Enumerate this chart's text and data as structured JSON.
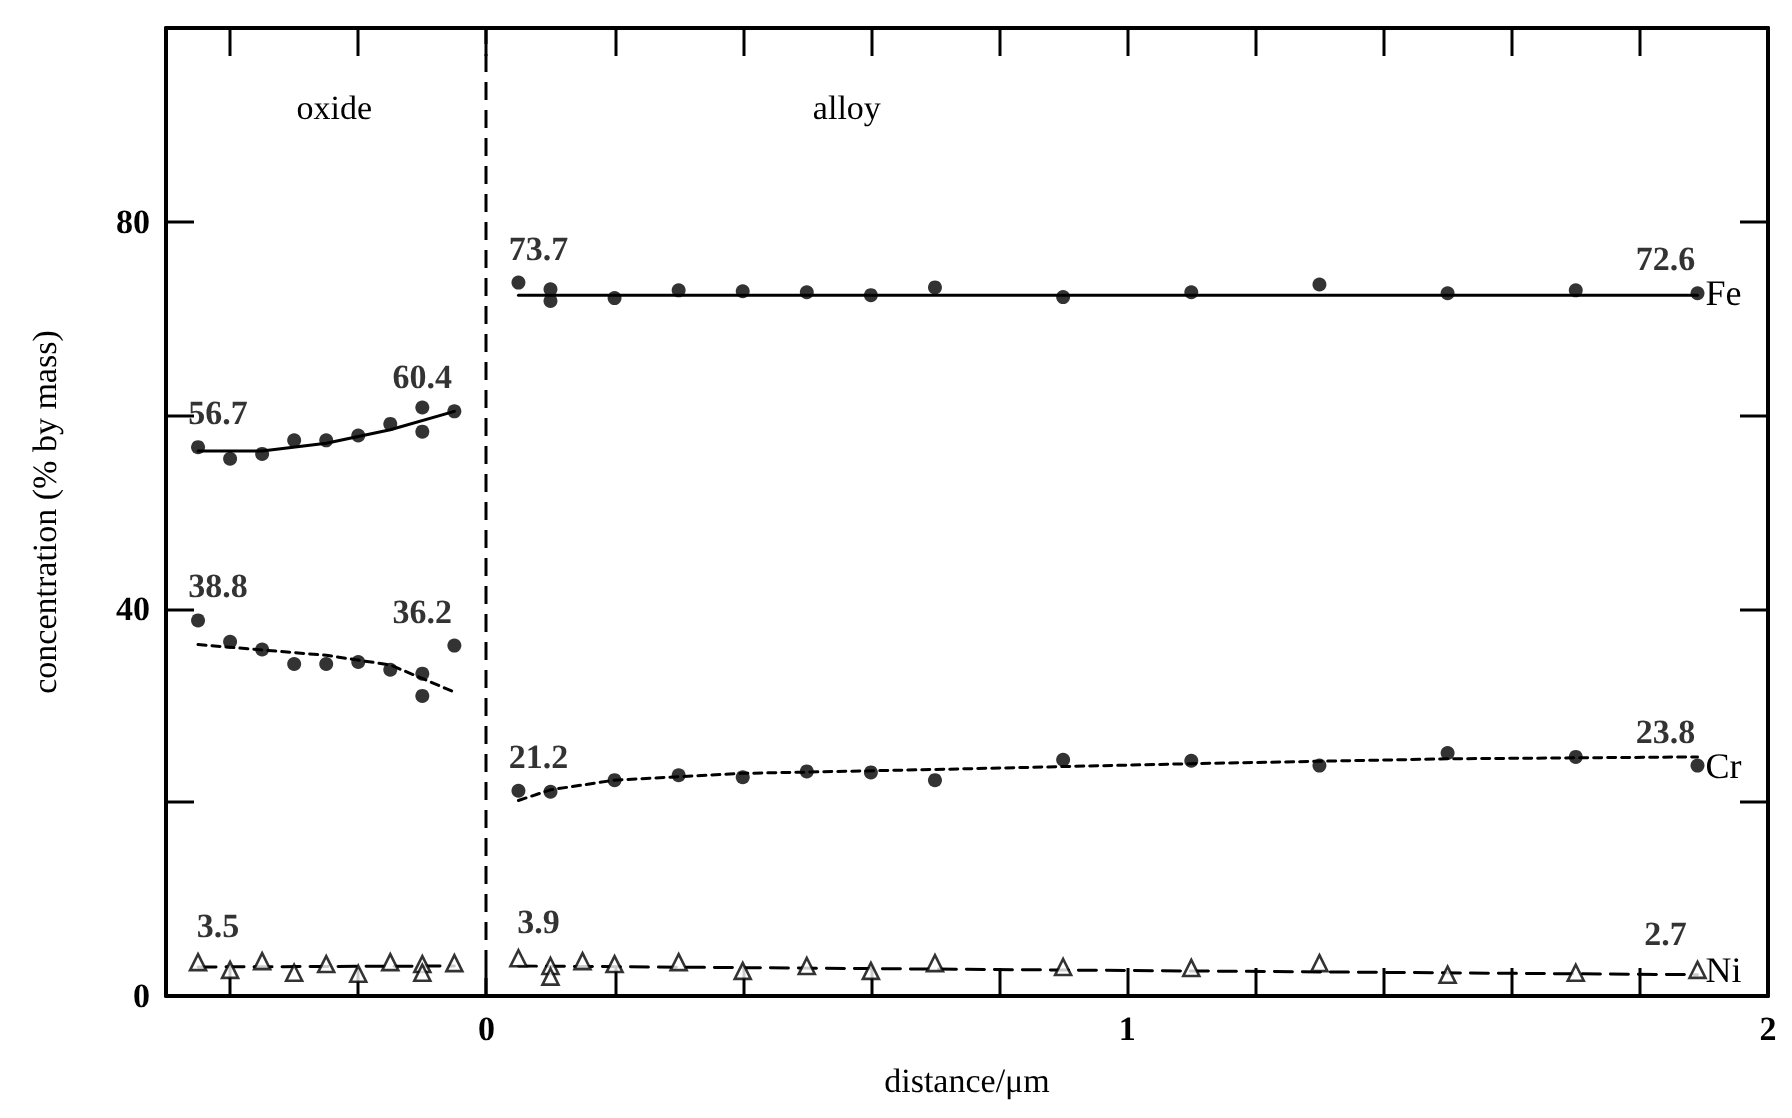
{
  "chart_data": {
    "type": "scatter",
    "xlabel": "distance/μm",
    "ylabel": "concentration (% by mass)",
    "xlim": [
      -0.5,
      2
    ],
    "ylim": [
      0,
      100
    ],
    "xticks": [
      {
        "value": -0.4,
        "label": null
      },
      {
        "value": -0.2,
        "label": null
      },
      0,
      {
        "value": 0.2,
        "label": null
      },
      {
        "value": 0.4,
        "label": null
      },
      {
        "value": 0.6,
        "label": null
      },
      {
        "value": 0.8,
        "label": null
      },
      1,
      {
        "value": 1.2,
        "label": null
      },
      {
        "value": 1.4,
        "label": null
      },
      {
        "value": 1.6,
        "label": null
      },
      {
        "value": 1.8,
        "label": null
      },
      2
    ],
    "yticks": [
      0,
      {
        "value": 20,
        "label": null
      },
      40,
      {
        "value": 60,
        "label": null
      },
      80
    ],
    "grid": false,
    "annotations": [
      "oxide",
      "alloy"
    ],
    "ref_lines": [
      {
        "axis": "x",
        "value": 0,
        "label": null,
        "color": "#000000",
        "line_style": "dashed"
      }
    ],
    "series": [
      {
        "color": "#000000",
        "marker": "circle",
        "x": [
          -0.45,
          -0.4,
          -0.35,
          -0.3,
          -0.25,
          -0.2,
          -0.15,
          -0.1,
          -0.1,
          -0.05
        ],
        "values": [
          56.7,
          55.5,
          56.0,
          57.4,
          57.4,
          57.9,
          59.1,
          60.8,
          58.3,
          60.4
        ],
        "value_labels": [
          "56.7",
          null,
          null,
          null,
          null,
          null,
          null,
          null,
          null,
          "60.4"
        ]
      },
      {
        "name": "Fe",
        "color": "#000000",
        "marker": "circle",
        "x": [
          0.05,
          0.1,
          0.1,
          0.2,
          0.3,
          0.4,
          0.5,
          0.6,
          0.7,
          0.9,
          1.1,
          1.3,
          1.5,
          1.7,
          1.89
        ],
        "values": [
          73.7,
          73.0,
          71.8,
          72.1,
          72.9,
          72.8,
          72.7,
          72.4,
          73.2,
          72.2,
          72.7,
          73.5,
          72.6,
          72.9,
          72.6
        ],
        "value_labels": [
          "73.7",
          null,
          null,
          null,
          null,
          null,
          null,
          null,
          null,
          null,
          null,
          null,
          null,
          null,
          "72.6"
        ]
      },
      {
        "color": "#000000",
        "marker": "circle",
        "x": [
          -0.45,
          -0.4,
          -0.35,
          -0.3,
          -0.25,
          -0.2,
          -0.15,
          -0.1,
          -0.1,
          -0.05
        ],
        "values": [
          38.8,
          36.6,
          35.8,
          34.3,
          34.3,
          34.5,
          33.7,
          33.3,
          31.0,
          36.2
        ],
        "value_labels": [
          "38.8",
          null,
          null,
          null,
          null,
          null,
          null,
          null,
          null,
          "36.2"
        ]
      },
      {
        "name": "Cr",
        "color": "#000000",
        "marker": "circle",
        "x": [
          0.05,
          0.1,
          0.2,
          0.3,
          0.4,
          0.5,
          0.6,
          0.7,
          0.9,
          1.1,
          1.3,
          1.5,
          1.7,
          1.89
        ],
        "values": [
          21.2,
          21.1,
          22.3,
          22.8,
          22.6,
          23.2,
          23.1,
          22.3,
          24.4,
          24.3,
          23.8,
          25.1,
          24.7,
          23.8
        ],
        "value_labels": [
          "21.2",
          null,
          null,
          null,
          null,
          null,
          null,
          null,
          null,
          null,
          null,
          null,
          null,
          "23.8"
        ]
      },
      {
        "color": "#000000",
        "marker": "triangle",
        "x": [
          -0.45,
          -0.4,
          -0.35,
          -0.3,
          -0.25,
          -0.2,
          -0.15,
          -0.1,
          -0.1,
          -0.05
        ],
        "values": [
          3.5,
          2.7,
          3.6,
          2.4,
          3.3,
          2.3,
          3.5,
          3.3,
          2.4,
          3.4
        ],
        "value_labels": [
          "3.5",
          null,
          null,
          null,
          null,
          null,
          null,
          null,
          null,
          null
        ]
      },
      {
        "name": "Ni",
        "color": "#000000",
        "marker": "triangle",
        "x": [
          0.05,
          0.1,
          0.1,
          0.15,
          0.2,
          0.3,
          0.4,
          0.5,
          0.6,
          0.7,
          0.9,
          1.1,
          1.3,
          1.5,
          1.7,
          1.89
        ],
        "values": [
          3.9,
          3.1,
          2.0,
          3.6,
          3.3,
          3.5,
          2.6,
          3.1,
          2.6,
          3.4,
          3.0,
          2.9,
          3.4,
          2.2,
          2.4,
          2.7
        ],
        "value_labels": [
          "3.9",
          null,
          null,
          null,
          null,
          null,
          null,
          null,
          null,
          null,
          null,
          null,
          null,
          null,
          null,
          "2.7"
        ]
      },
      {
        "type": "line",
        "color": "#000000",
        "marker": "none",
        "line_style": "solid",
        "x": [
          -0.45,
          -0.35,
          -0.25,
          -0.15,
          -0.05
        ],
        "values": [
          56.3,
          56.3,
          57.1,
          58.5,
          60.4
        ]
      },
      {
        "type": "line",
        "color": "#000000",
        "marker": "none",
        "line_style": "solid",
        "x": [
          0.05,
          1.89
        ],
        "values": [
          72.4,
          72.4
        ]
      },
      {
        "type": "line",
        "color": "#000000",
        "marker": "none",
        "line_style": "dotted",
        "x": [
          -0.45,
          -0.25,
          -0.15,
          -0.05
        ],
        "values": [
          36.3,
          35.2,
          34.2,
          31.4
        ]
      },
      {
        "type": "line",
        "color": "#000000",
        "marker": "none",
        "line_style": "dotted",
        "x": [
          0.05,
          0.1,
          0.2,
          0.4,
          0.7,
          1.1,
          1.5,
          1.89
        ],
        "values": [
          20.2,
          21.3,
          22.3,
          23.0,
          23.4,
          24.0,
          24.5,
          24.7
        ]
      },
      {
        "type": "line",
        "color": "#000000",
        "marker": "none",
        "line_style": "dashed",
        "x": [
          -0.45,
          -0.05
        ],
        "values": [
          3.0,
          3.1
        ]
      },
      {
        "type": "line",
        "color": "#000000",
        "marker": "none",
        "line_style": "dashed",
        "x": [
          0.05,
          1.89
        ],
        "values": [
          3.1,
          2.2
        ]
      }
    ]
  }
}
